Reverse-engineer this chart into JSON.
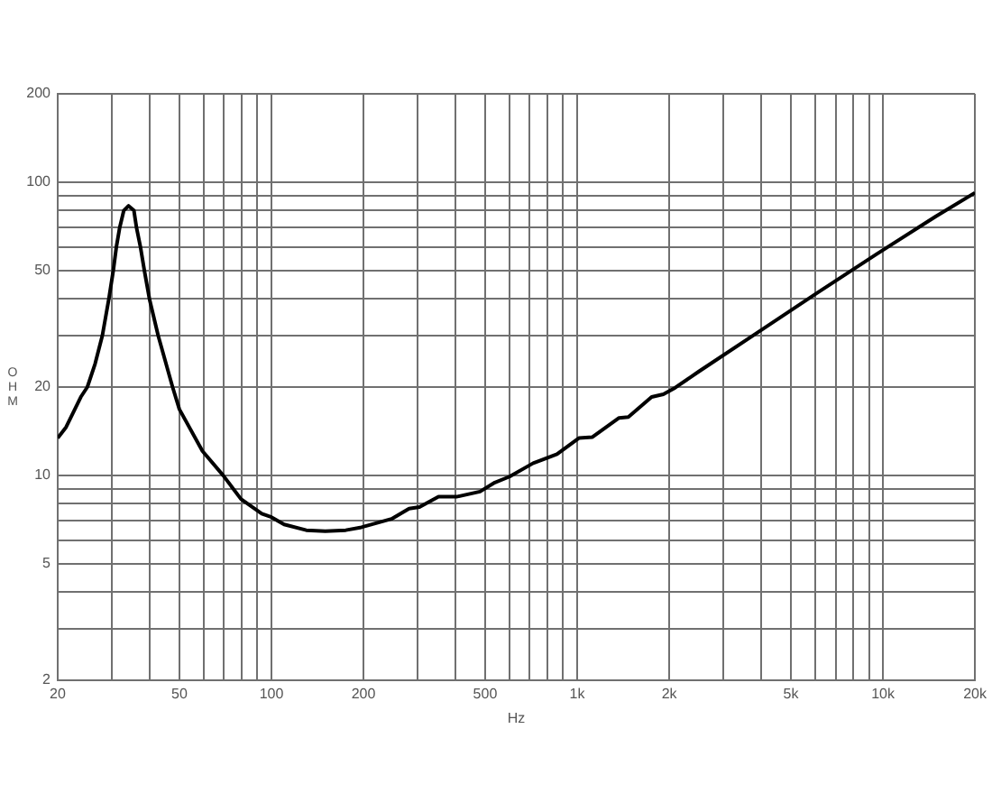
{
  "chart_data": {
    "type": "line",
    "xlabel": "Hz",
    "ylabel": "OHM",
    "log": "xy",
    "grid": true,
    "color": "#000000",
    "x": [
      20,
      21.3,
      23.8,
      25,
      26.5,
      28,
      29.4,
      30.4,
      31.1,
      31.9,
      32.9,
      34.1,
      35.5,
      36.2,
      37.3,
      38.4,
      39.9,
      42.6,
      47.5,
      50,
      59.5,
      69.5,
      79.5,
      93,
      100,
      110,
      130,
      150,
      175,
      197,
      247,
      282,
      305,
      352,
      403,
      481,
      538,
      601,
      718,
      859,
      1013,
      1122,
      1371,
      1470,
      1752,
      1914,
      2093,
      2500,
      3908,
      6096,
      9513,
      14870,
      20000
    ],
    "values": [
      13.4,
      14.6,
      18.5,
      20,
      24,
      30,
      40,
      50,
      60,
      70,
      80,
      83,
      80,
      70,
      60,
      50,
      40,
      30,
      20,
      16.8,
      12.1,
      10,
      8.3,
      7.4,
      7.2,
      6.8,
      6.5,
      6.45,
      6.5,
      6.65,
      7.1,
      7.7,
      7.8,
      8.45,
      8.45,
      8.8,
      9.45,
      9.9,
      11,
      11.8,
      13.4,
      13.5,
      15.7,
      15.8,
      18.5,
      18.9,
      19.9,
      22.6,
      30.8,
      41.9,
      56.7,
      76.3,
      92
    ],
    "xlim": [
      20,
      20000
    ],
    "xticks": [
      20,
      {
        "value": 30,
        "label": null
      },
      {
        "value": 40,
        "label": null
      },
      50,
      {
        "value": 60,
        "label": null
      },
      {
        "value": 70,
        "label": null
      },
      {
        "value": 80,
        "label": null
      },
      {
        "value": 90,
        "label": null
      },
      100,
      200,
      {
        "value": 300,
        "label": null
      },
      {
        "value": 400,
        "label": null
      },
      500,
      {
        "value": 600,
        "label": null
      },
      {
        "value": 700,
        "label": null
      },
      {
        "value": 800,
        "label": null
      },
      {
        "value": 900,
        "label": null
      },
      {
        "value": 1000,
        "label": "1k"
      },
      {
        "value": 2000,
        "label": "2k"
      },
      {
        "value": 3000,
        "label": null
      },
      {
        "value": 4000,
        "label": null
      },
      {
        "value": 5000,
        "label": "5k"
      },
      {
        "value": 6000,
        "label": null
      },
      {
        "value": 7000,
        "label": null
      },
      {
        "value": 8000,
        "label": null
      },
      {
        "value": 9000,
        "label": null
      },
      {
        "value": 10000,
        "label": "10k"
      },
      {
        "value": 20000,
        "label": "20k"
      }
    ],
    "ylim": [
      2,
      200
    ],
    "yticks": [
      2,
      {
        "value": 3,
        "label": null
      },
      {
        "value": 4,
        "label": null
      },
      5,
      {
        "value": 6,
        "label": null
      },
      {
        "value": 7,
        "label": null
      },
      {
        "value": 8,
        "label": null
      },
      {
        "value": 9,
        "label": null
      },
      10,
      20,
      {
        "value": 30,
        "label": null
      },
      {
        "value": 40,
        "label": null
      },
      50,
      {
        "value": 60,
        "label": null
      },
      {
        "value": 70,
        "label": null
      },
      {
        "value": 80,
        "label": null
      },
      {
        "value": 90,
        "label": null
      },
      100,
      200
    ]
  }
}
